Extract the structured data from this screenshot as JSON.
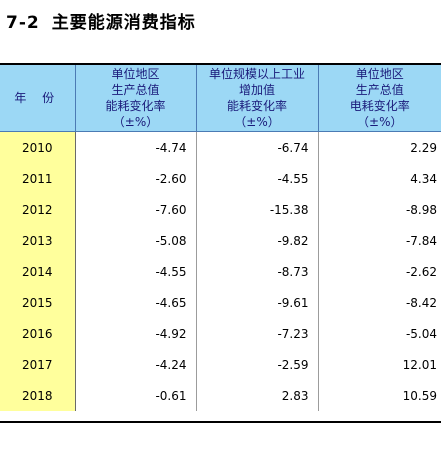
{
  "title": {
    "number": "7-2",
    "text": "主要能源消费指标"
  },
  "table": {
    "headers": [
      {
        "lines": [
          "年  份"
        ]
      },
      {
        "lines": [
          "单位地区",
          "生产总值",
          "能耗变化率",
          "（±%）"
        ]
      },
      {
        "lines": [
          "单位规模以上工业",
          "增加值",
          "能耗变化率",
          "（±%）"
        ]
      },
      {
        "lines": [
          "单位地区",
          "生产总值",
          "电耗变化率",
          "（±%）"
        ]
      }
    ],
    "rows": [
      {
        "year": "2010",
        "gdp_energy": "-4.74",
        "industry_energy": "-6.74",
        "gdp_electricity": "2.29"
      },
      {
        "year": "2011",
        "gdp_energy": "-2.60",
        "industry_energy": "-4.55",
        "gdp_electricity": "4.34"
      },
      {
        "year": "2012",
        "gdp_energy": "-7.60",
        "industry_energy": "-15.38",
        "gdp_electricity": "-8.98"
      },
      {
        "year": "2013",
        "gdp_energy": "-5.08",
        "industry_energy": "-9.82",
        "gdp_electricity": "-7.84"
      },
      {
        "year": "2014",
        "gdp_energy": "-4.55",
        "industry_energy": "-8.73",
        "gdp_electricity": "-2.62"
      },
      {
        "year": "2015",
        "gdp_energy": "-4.65",
        "industry_energy": "-9.61",
        "gdp_electricity": "-8.42"
      },
      {
        "year": "2016",
        "gdp_energy": "-4.92",
        "industry_energy": "-7.23",
        "gdp_electricity": "-5.04"
      },
      {
        "year": "2017",
        "gdp_energy": "-4.24",
        "industry_energy": "-2.59",
        "gdp_electricity": "12.01"
      },
      {
        "year": "2018",
        "gdp_energy": "-0.61",
        "industry_energy": "2.83",
        "gdp_electricity": "10.59"
      }
    ]
  },
  "colors": {
    "header_background": "#9cd8f5",
    "header_text": "#1a1a7a",
    "year_cell_background": "#ffff9c",
    "rule": "#000000"
  }
}
